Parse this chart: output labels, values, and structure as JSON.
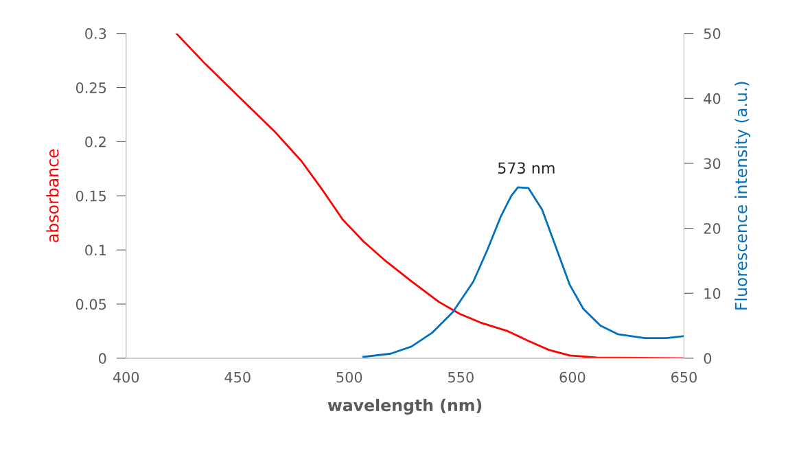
{
  "chart_data": {
    "type": "line",
    "xlabel": "wavelength (nm)",
    "ylabel": "absorbance",
    "y2label": "Fluorescence intensity (a.u.)",
    "xlim": [
      400,
      650
    ],
    "xticks": [
      400,
      450,
      500,
      550,
      600,
      650
    ],
    "ylim": [
      0,
      0.3
    ],
    "yticks": [
      0,
      0.05,
      0.1,
      0.15,
      0.2,
      0.25,
      0.3
    ],
    "y2lim": [
      0,
      50
    ],
    "y2ticks": [
      0,
      10,
      20,
      30,
      40,
      50
    ],
    "grid": false,
    "legend": false,
    "marker": "none",
    "line_style": "solid",
    "annotations": [
      "573 nm"
    ],
    "series": [
      {
        "color": "#ff0000",
        "x": [
          422.5,
          435.4,
          450.8,
          466.3,
          478.6,
          487.8,
          497.1,
          506.3,
          515.6,
          527.9,
          540.2,
          549.5,
          558.7,
          571.0,
          580.3,
          589.5,
          598.8,
          611,
          650
        ],
        "values": [
          0.3,
          0.272,
          0.241,
          0.21,
          0.182,
          0.156,
          0.128,
          0.108,
          0.091,
          0.071,
          0.052,
          0.041,
          0.033,
          0.025,
          0.016,
          0.0076,
          0.0025,
          0.0006,
          0
        ]
      },
      {
        "color": "#0070c0",
        "axis": "y2",
        "x": [
          506.3,
          518.6,
          527.9,
          537.1,
          546.4,
          555.6,
          561.8,
          567.9,
          572.6,
          575.6,
          580.3,
          586.4,
          592.6,
          598.8,
          604.9,
          612.6,
          620.3,
          632.6,
          641.9,
          650
        ],
        "values": [
          0.2,
          0.7,
          1.8,
          3.9,
          7.1,
          11.8,
          16.6,
          21.8,
          25.0,
          26.3,
          26.2,
          22.9,
          17.1,
          11.3,
          7.6,
          5.0,
          3.7,
          3.1,
          3.1,
          3.4
        ]
      }
    ]
  }
}
